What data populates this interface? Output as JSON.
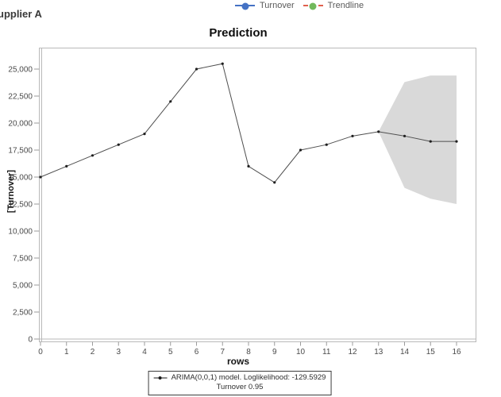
{
  "header": {
    "supplier_label": "upplier A",
    "title": "Prediction"
  },
  "top_legend": {
    "items": [
      {
        "label": "Turnover",
        "marker_color": "#4472c4",
        "line_color": "#4472c4",
        "line_style": "solid"
      },
      {
        "label": "Trendline",
        "marker_color": "#72b95c",
        "line_color": "#e0604d",
        "line_style": "dashed"
      }
    ]
  },
  "chart_data": {
    "type": "line",
    "title": "Prediction",
    "xlabel": "rows",
    "ylabel": "[Turnover]",
    "x": [
      0,
      1,
      2,
      3,
      4,
      5,
      6,
      7,
      8,
      9,
      10,
      11,
      12,
      13,
      14,
      15,
      16
    ],
    "series": [
      {
        "name": "Turnover",
        "color": "#4f4f4f",
        "marker_color": "#1f1f1f",
        "values": [
          15000,
          16000,
          17000,
          18000,
          19000,
          22000,
          25000,
          25500,
          16000,
          14500,
          17500,
          18000,
          18800,
          19200,
          18800,
          18300,
          18300
        ]
      }
    ],
    "confidence_band": {
      "x": [
        13,
        14,
        15,
        16
      ],
      "upper": [
        19200,
        23800,
        24400,
        24400
      ],
      "lower": [
        19200,
        14000,
        13000,
        12500
      ],
      "color": "#d9d9d9"
    },
    "xticks": [
      0,
      1,
      2,
      3,
      4,
      5,
      6,
      7,
      8,
      9,
      10,
      11,
      12,
      13,
      14,
      15,
      16
    ],
    "yticks": [
      0,
      2500,
      5000,
      7500,
      10000,
      12500,
      15000,
      17500,
      20000,
      22500,
      25000
    ],
    "ytick_labels": [
      "0",
      "2,500",
      "5,000",
      "7,500",
      "10,000",
      "12,500",
      "15,000",
      "17,500",
      "20,000",
      "22,500",
      "25,000"
    ],
    "xlim": [
      0,
      16.8
    ],
    "ylim": [
      0,
      27000
    ],
    "grid": false,
    "legend_position": "top"
  },
  "bottom_legend": {
    "line1": "ARIMA(0,0,1) model. Loglikelihood: -129.5929",
    "line2": "Turnover 0.95"
  }
}
